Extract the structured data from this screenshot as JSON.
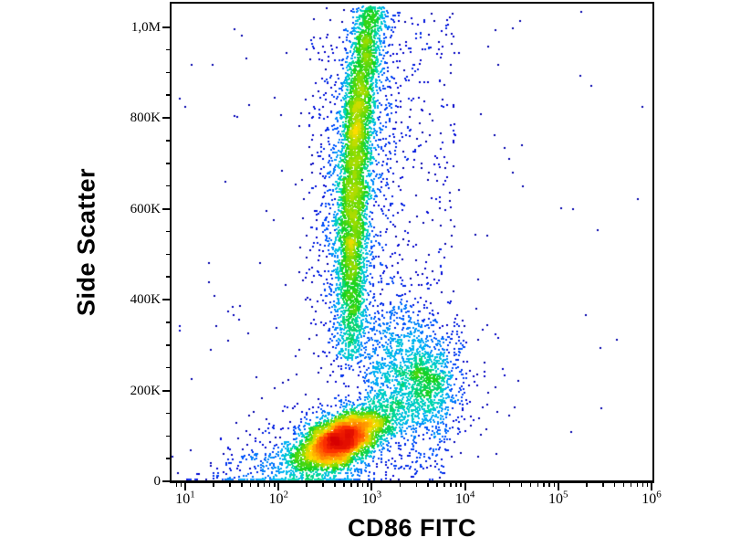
{
  "chart_data": {
    "type": "scatter",
    "subtype": "flow-cytometry-pseudocolor-density-plot",
    "title": "",
    "xlabel": "CD86 FITC",
    "ylabel": "Side Scatter",
    "x_scale": "log10",
    "x_range_log": [
      0.85,
      6.0
    ],
    "y_range": [
      0,
      1048000
    ],
    "grid": false,
    "legend": false,
    "background": "#ffffff",
    "axis_color": "#000000",
    "x_ticks": [
      {
        "base": "10",
        "exp": "1",
        "log": 1
      },
      {
        "base": "10",
        "exp": "2",
        "log": 2
      },
      {
        "base": "10",
        "exp": "3",
        "log": 3
      },
      {
        "base": "10",
        "exp": "4",
        "log": 4
      },
      {
        "base": "10",
        "exp": "5",
        "log": 5
      },
      {
        "base": "10",
        "exp": "6",
        "log": 6
      }
    ],
    "x_minor_mantissas": [
      2,
      3,
      4,
      5,
      6,
      7,
      8,
      9
    ],
    "y_ticks": [
      {
        "label": "0",
        "value": 0
      },
      {
        "label": "200K",
        "value": 200000
      },
      {
        "label": "400K",
        "value": 400000
      },
      {
        "label": "600K",
        "value": 600000
      },
      {
        "label": "800K",
        "value": 800000
      },
      {
        "label": "1,0M",
        "value": 1000000
      }
    ],
    "y_minor_step": 50000,
    "density_color_scale": "log",
    "colormap": [
      [
        0.0,
        "#000070"
      ],
      [
        0.1,
        "#0000D2"
      ],
      [
        0.22,
        "#0055FF"
      ],
      [
        0.34,
        "#00B4F5"
      ],
      [
        0.45,
        "#00D7B4"
      ],
      [
        0.55,
        "#14D21E"
      ],
      [
        0.65,
        "#8CDC00"
      ],
      [
        0.75,
        "#FFDC00"
      ],
      [
        0.83,
        "#FF8C00"
      ],
      [
        0.91,
        "#FF3200"
      ],
      [
        1.0,
        "#D70000"
      ]
    ],
    "populations": [
      {
        "name": "lymphocytes",
        "type": "gaussian",
        "n": 4500,
        "center_logx": 2.675,
        "center_ssc": 92000,
        "sigma_logx": 0.234,
        "sigma_ssc": 32000,
        "rho": 0.55
      },
      {
        "name": "lymphocytes-halo",
        "type": "gaussian",
        "n": 850,
        "center_logx": 2.675,
        "center_ssc": 92000,
        "sigma_logx": 0.54,
        "sigma_ssc": 74000,
        "rho": 0.55
      },
      {
        "name": "granulocytes",
        "type": "band",
        "n": 4600,
        "sigma_logx": 0.088,
        "ssc_mean": 700000,
        "ssc_sigma": 290000,
        "ssc_min": 270000,
        "ssc_max": 1045000,
        "centerline": [
          [
            1048000,
            2.995
          ],
          [
            900000,
            2.9
          ],
          [
            750000,
            2.83
          ],
          [
            550000,
            2.785
          ],
          [
            350000,
            2.77
          ],
          [
            240000,
            2.78
          ]
        ]
      },
      {
        "name": "granulocytes-halo",
        "type": "band",
        "n": 1050,
        "sigma_logx": 0.235,
        "ssc_mean": 680000,
        "ssc_sigma": 310000,
        "ssc_min": 230000,
        "ssc_max": 1045000,
        "centerline": [
          [
            1048000,
            2.995
          ],
          [
            900000,
            2.9
          ],
          [
            750000,
            2.83
          ],
          [
            550000,
            2.785
          ],
          [
            350000,
            2.77
          ],
          [
            240000,
            2.78
          ]
        ]
      },
      {
        "name": "monocytes",
        "type": "gaussian",
        "n": 800,
        "center_logx": 3.572,
        "center_ssc": 212000,
        "sigma_logx": 0.175,
        "sigma_ssc": 46000,
        "rho": 0.1
      },
      {
        "name": "monocytes-halo",
        "type": "gaussian",
        "n": 380,
        "center_logx": 3.572,
        "center_ssc": 212000,
        "sigma_logx": 0.33,
        "sigma_ssc": 87000,
        "rho": 0.1
      },
      {
        "name": "band-monocyte-bridge",
        "type": "gaussian",
        "n": 430,
        "center_logx": 3.28,
        "center_ssc": 300000,
        "sigma_logx": 0.2,
        "sigma_ssc": 62000,
        "rho": 0
      },
      {
        "name": "debris",
        "type": "gaussian",
        "n": 300,
        "center_logx": 2.17,
        "center_ssc": 28000,
        "sigma_logx": 0.5,
        "sigma_ssc": 26000,
        "rho": 0
      }
    ],
    "sparse_regions": [
      {
        "name": "background-sparse",
        "logx": [
          0.9,
          4.6
        ],
        "ssc": [
          5000,
          1040000
        ],
        "n": 130
      },
      {
        "name": "background-sparse-far-right",
        "logx": [
          4.6,
          5.95
        ],
        "ssc": [
          5000,
          1040000
        ],
        "n": 15
      },
      {
        "name": "band-right-fringe",
        "logx": [
          3.0,
          3.9
        ],
        "ssc": [
          300000,
          1030000
        ],
        "n": 300
      },
      {
        "name": "band-left-fringe",
        "logx": [
          2.28,
          2.62
        ],
        "ssc": [
          330000,
          980000
        ],
        "n": 100
      },
      {
        "name": "lymphocyte-monocyte-bridge",
        "logx": [
          2.92,
          3.33
        ],
        "ssc": [
          120000,
          260000
        ],
        "n": 140
      },
      {
        "name": "below-monocytes",
        "logx": [
          3.3,
          3.8
        ],
        "ssc": [
          15000,
          170000
        ],
        "n": 110
      }
    ]
  }
}
